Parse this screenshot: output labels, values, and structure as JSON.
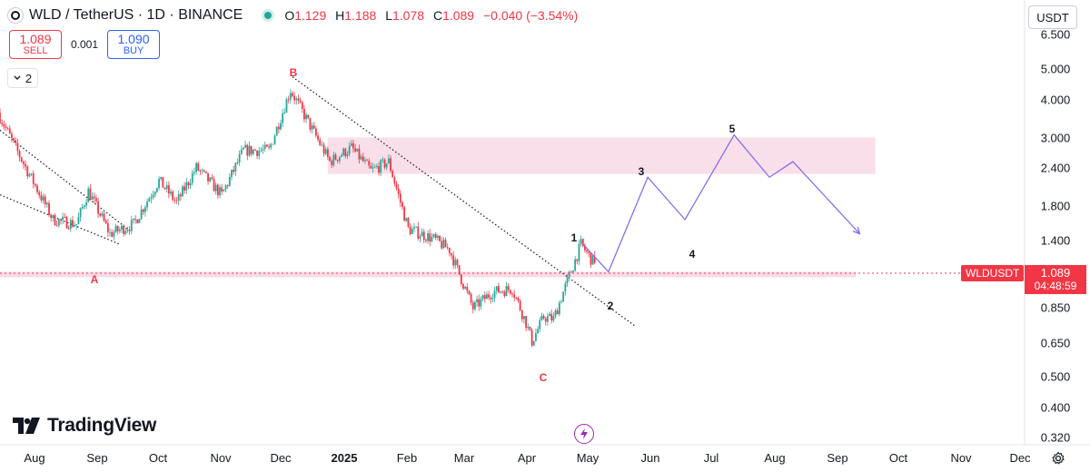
{
  "header": {
    "symbol_title": "WLD / TetherUS · 1D · BINANCE",
    "ohlc": [
      {
        "key": "O",
        "value": "1.129"
      },
      {
        "key": "H",
        "value": "1.188"
      },
      {
        "key": "L",
        "value": "1.078"
      },
      {
        "key": "C",
        "value": "1.089"
      }
    ],
    "change": "−0.040 (−3.54%)",
    "status_color": "#26a69a"
  },
  "trade": {
    "sell_price": "1.089",
    "sell_label": "SELL",
    "spread": "0.001",
    "buy_price": "1.090",
    "buy_label": "BUY"
  },
  "indicators_toggle": {
    "icon": "chevron-down-icon",
    "count": "2"
  },
  "currency_button": "USDT",
  "price_axis": {
    "ticks": [
      "6.500",
      "5.000",
      "4.000",
      "3.000",
      "2.400",
      "1.800",
      "1.400",
      "0.850",
      "0.650",
      "0.500",
      "0.400",
      "0.320"
    ],
    "scale": "log"
  },
  "time_axis": {
    "ticks": [
      "Aug",
      "Sep",
      "Oct",
      "Nov",
      "Dec",
      "2025",
      "Feb",
      "Mar",
      "Apr",
      "May",
      "Jun",
      "Jul",
      "Aug",
      "Sep",
      "Oct",
      "Nov",
      "Dec"
    ]
  },
  "price_label": {
    "symbol": "WLDUSDT",
    "price": "1.089",
    "countdown": "04:48:59",
    "color": "#f23645"
  },
  "wave_labels": {
    "A": "A",
    "B": "B",
    "C": "C",
    "w1": "1",
    "w2": "2",
    "w3": "3",
    "w4": "4",
    "w5": "5"
  },
  "branding": {
    "logo_text": "TradingView"
  },
  "icons": {
    "settings": "gear-icon",
    "bolt": "lightning-icon"
  },
  "colors": {
    "up": "#26a69a",
    "down": "#f23645",
    "projection": "#7b68ee",
    "zone": "#f8d7e3",
    "trendline": "#131722"
  },
  "chart_data": {
    "type": "candlestick",
    "title": "",
    "xlabel": "",
    "ylabel": "",
    "scale": "log",
    "ylim": [
      0.3,
      7.0
    ],
    "x_range": [
      "2024-07-11",
      "2025-12-15"
    ],
    "anchors": [
      {
        "date": "2024-07-11",
        "price": 3.3
      },
      {
        "date": "2024-07-22",
        "price": 2.4
      },
      {
        "date": "2024-08-08",
        "price": 1.5
      },
      {
        "date": "2024-08-20",
        "price": 1.45
      },
      {
        "date": "2024-08-26",
        "price": 1.85
      },
      {
        "date": "2024-09-06",
        "price": 1.35
      },
      {
        "date": "2024-09-18",
        "price": 1.45
      },
      {
        "date": "2024-10-01",
        "price": 2.0
      },
      {
        "date": "2024-10-10",
        "price": 1.7
      },
      {
        "date": "2024-10-20",
        "price": 2.2
      },
      {
        "date": "2024-11-02",
        "price": 1.8
      },
      {
        "date": "2024-11-13",
        "price": 2.5
      },
      {
        "date": "2024-11-26",
        "price": 2.5
      },
      {
        "date": "2024-12-07",
        "price": 3.9
      },
      {
        "date": "2024-12-17",
        "price": 3.0
      },
      {
        "date": "2024-12-27",
        "price": 2.3
      },
      {
        "date": "2025-01-07",
        "price": 2.55
      },
      {
        "date": "2025-01-17",
        "price": 2.15
      },
      {
        "date": "2025-01-26",
        "price": 2.3
      },
      {
        "date": "2025-02-05",
        "price": 1.4
      },
      {
        "date": "2025-02-18",
        "price": 1.3
      },
      {
        "date": "2025-02-26",
        "price": 1.2
      },
      {
        "date": "2025-03-10",
        "price": 0.78
      },
      {
        "date": "2025-03-20",
        "price": 0.88
      },
      {
        "date": "2025-03-30",
        "price": 0.9
      },
      {
        "date": "2025-04-06",
        "price": 0.7
      },
      {
        "date": "2025-04-09",
        "price": 0.61
      },
      {
        "date": "2025-04-15",
        "price": 0.73
      },
      {
        "date": "2025-04-20",
        "price": 0.72
      },
      {
        "date": "2025-04-27",
        "price": 0.95
      },
      {
        "date": "2025-05-04",
        "price": 1.25
      },
      {
        "date": "2025-05-10",
        "price": 1.1
      }
    ],
    "last": {
      "open": 1.129,
      "high": 1.188,
      "low": 1.078,
      "close": 1.089
    },
    "projection": [
      {
        "date": "2025-05-04",
        "price": 1.25
      },
      {
        "date": "2025-05-17",
        "price": 1.02
      },
      {
        "date": "2025-06-06",
        "price": 2.05
      },
      {
        "date": "2025-06-25",
        "price": 1.5
      },
      {
        "date": "2025-07-20",
        "price": 2.8
      },
      {
        "date": "2025-08-07",
        "price": 2.05
      },
      {
        "date": "2025-08-19",
        "price": 2.3
      },
      {
        "date": "2025-09-22",
        "price": 1.35
      }
    ],
    "zones": [
      {
        "start": "2024-12-25",
        "end": "2025-09-30",
        "low": 2.1,
        "high": 2.75
      },
      {
        "start": "2024-07-11",
        "end": "2025-09-20",
        "low": 0.98,
        "high": 1.02
      }
    ],
    "trendlines": [
      {
        "from": {
          "date": "2024-07-11",
          "price": 2.9
        },
        "to": {
          "date": "2024-09-14",
          "price": 1.4
        }
      },
      {
        "from": {
          "date": "2024-07-11",
          "price": 1.8
        },
        "to": {
          "date": "2024-09-10",
          "price": 1.25
        }
      },
      {
        "from": {
          "date": "2024-12-07",
          "price": 4.3
        },
        "to": {
          "date": "2025-05-31",
          "price": 0.68
        }
      }
    ],
    "wave_points": [
      {
        "label": "A",
        "date": "2024-08-22",
        "price": 1.05
      },
      {
        "label": "B",
        "date": "2024-12-08",
        "price": 4.8
      },
      {
        "label": "C",
        "date": "2025-04-10",
        "price": 0.53
      },
      {
        "label": "1",
        "date": "2025-05-03",
        "price": 1.55
      },
      {
        "label": "2",
        "date": "2025-05-20",
        "price": 0.9
      },
      {
        "label": "3",
        "date": "2025-06-05",
        "price": 2.55
      },
      {
        "label": "4",
        "date": "2025-06-27",
        "price": 1.25
      },
      {
        "label": "5",
        "date": "2025-07-20",
        "price": 3.25
      }
    ],
    "grid": false,
    "current_price": 1.089
  }
}
